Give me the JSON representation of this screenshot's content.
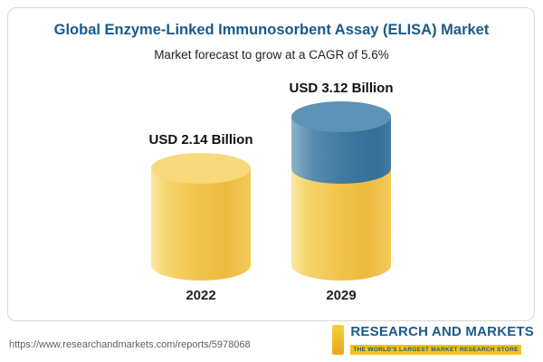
{
  "chart_data": {
    "type": "bar",
    "bar_style": "3d-cylinder",
    "title": "Global Enzyme-Linked Immunosorbent Assay (ELISA) Market",
    "subtitle": "Market forecast to grow at a CAGR of 5.6%",
    "categories": [
      "2022",
      "2029"
    ],
    "values": [
      2.14,
      3.12
    ],
    "value_labels": [
      "USD 2.14 Billion",
      "USD 3.12 Billion"
    ],
    "unit": "USD Billion",
    "cagr_pct": 5.6,
    "grid": false,
    "legend": false,
    "ylim": [
      0,
      3.5
    ],
    "segments": [
      {
        "category": "2022",
        "parts": [
          {
            "value": 2.14,
            "color": "#f2c54e"
          }
        ]
      },
      {
        "category": "2029",
        "parts": [
          {
            "value": 2.14,
            "color": "#f2c54e"
          },
          {
            "value": 0.98,
            "color": "#3f78a2"
          }
        ]
      }
    ]
  },
  "footer": {
    "url": "https://www.researchandmarkets.com/reports/5978068",
    "logo_title": "RESEARCH AND MARKETS",
    "logo_tagline": "THE WORLD'S LARGEST MARKET RESEARCH STORE"
  },
  "colors": {
    "title_blue": "#1a5a8c",
    "bar_yellow": "#f2c54e",
    "bar_blue": "#3f78a2",
    "logo_yellow": "#f5c21c",
    "frame_border": "#d7d7d7"
  }
}
